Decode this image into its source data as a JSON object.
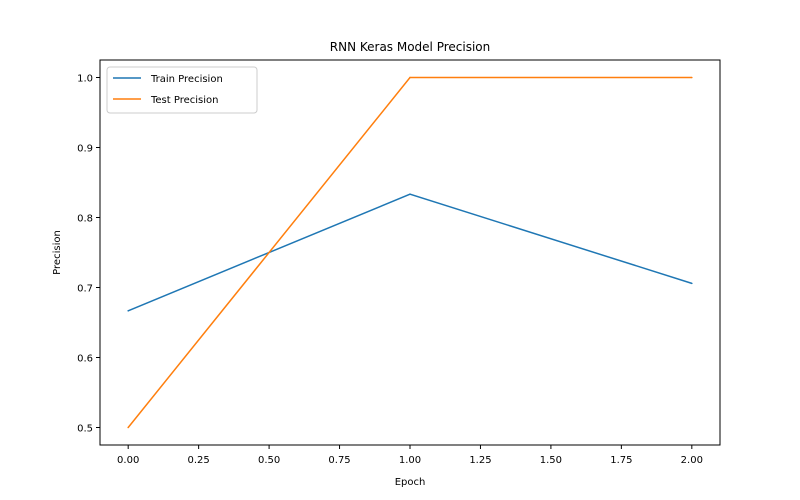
{
  "chart_data": {
    "type": "line",
    "title": "RNN Keras Model Precision",
    "xlabel": "Epoch",
    "ylabel": "Precision",
    "x": [
      0,
      1,
      2
    ],
    "series": [
      {
        "name": "Train Precision",
        "color": "#1f77b4",
        "values": [
          0.6667,
          0.8333,
          0.7059
        ]
      },
      {
        "name": "Test Precision",
        "color": "#ff7f0e",
        "values": [
          0.5,
          1.0,
          1.0
        ]
      }
    ],
    "xlim": [
      -0.1,
      2.1
    ],
    "ylim": [
      0.475,
      1.025
    ],
    "xticks": [
      0.0,
      0.25,
      0.5,
      0.75,
      1.0,
      1.25,
      1.5,
      1.75,
      2.0
    ],
    "xtick_labels": [
      "0.00",
      "0.25",
      "0.50",
      "0.75",
      "1.00",
      "1.25",
      "1.50",
      "1.75",
      "2.00"
    ],
    "yticks": [
      0.5,
      0.6,
      0.7,
      0.8,
      0.9,
      1.0
    ],
    "ytick_labels": [
      "0.5",
      "0.6",
      "0.7",
      "0.8",
      "0.9",
      "1.0"
    ],
    "grid": false,
    "legend_position": "top-left"
  }
}
